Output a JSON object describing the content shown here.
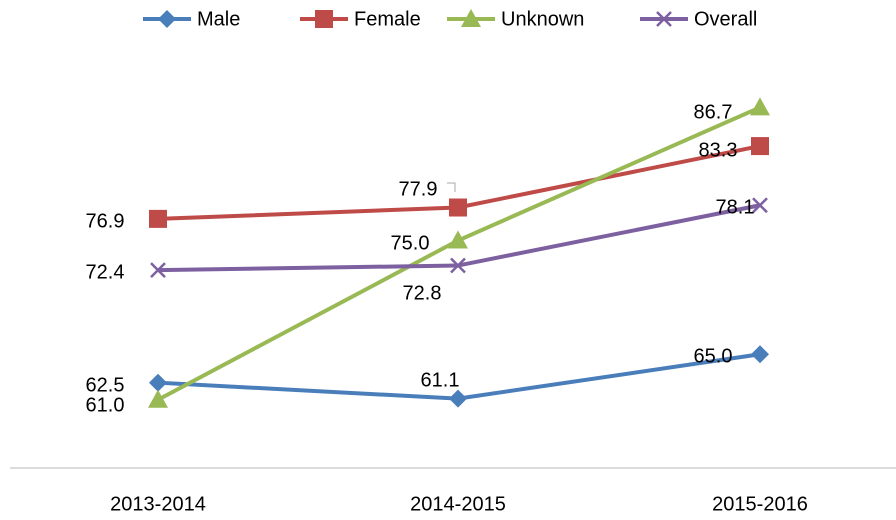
{
  "chart_data": {
    "type": "line",
    "categories": [
      "2013-2014",
      "2014-2015",
      "2015-2016"
    ],
    "series": [
      {
        "name": "Male",
        "color": "#4a7ebb",
        "marker": "diamond",
        "values": [
          62.5,
          61.1,
          65.0
        ],
        "value_labels": [
          "62.5",
          "61.1",
          "65.0"
        ]
      },
      {
        "name": "Female",
        "color": "#be4b48",
        "marker": "square",
        "values": [
          76.9,
          77.9,
          83.3
        ],
        "value_labels": [
          "76.9",
          "77.9",
          "83.3"
        ]
      },
      {
        "name": "Unknown",
        "color": "#98b954",
        "marker": "triangle",
        "values": [
          61.0,
          75.0,
          86.7
        ],
        "value_labels": [
          "61.0",
          "75.0",
          "86.7"
        ]
      },
      {
        "name": "Overall",
        "color": "#7d60a0",
        "marker": "x",
        "values": [
          72.4,
          72.8,
          78.1
        ],
        "value_labels": [
          "72.4",
          "72.8",
          "78.1"
        ]
      }
    ],
    "ylim": [
      55,
      95
    ],
    "legend": "top"
  }
}
